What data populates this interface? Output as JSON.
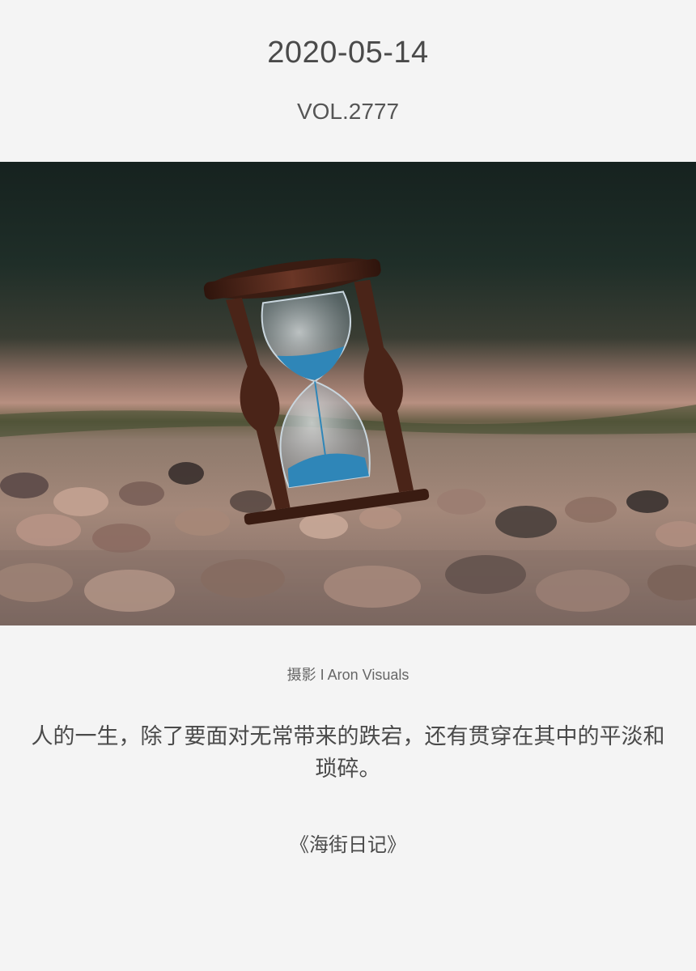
{
  "header": {
    "date": "2020-05-14",
    "volume": "VOL.2777"
  },
  "photo": {
    "subject": "hourglass-on-pebbles",
    "colors": {
      "sand": "#2f86b8",
      "wood": "#4a2418",
      "background_dark": "#1a2a26"
    }
  },
  "credit": {
    "text": "摄影 I Aron Visuals"
  },
  "quote": {
    "text": "人的一生，除了要面对无常带来的跌宕，还有贯穿在其中的平淡和琐碎。"
  },
  "source": {
    "text": "《海街日记》"
  }
}
